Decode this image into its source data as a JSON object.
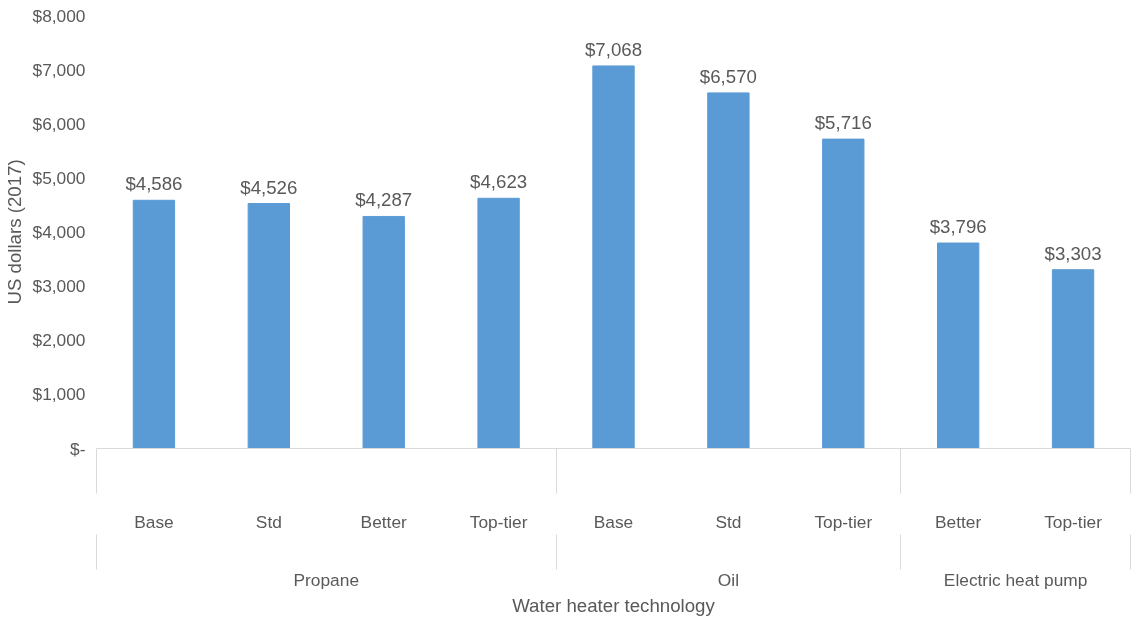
{
  "chart_data": {
    "type": "bar",
    "xlabel": "Water heater technology",
    "ylabel": "US dollars (2017)",
    "categories": [
      "Base",
      "Std",
      "Better",
      "Top-tier",
      "Base",
      "Std",
      "Top-tier",
      "Better",
      "Top-tier"
    ],
    "values": [
      4586,
      4526,
      4287,
      4623,
      7068,
      6570,
      5716,
      3796,
      3303
    ],
    "value_labels": [
      "$4,586",
      "$4,526",
      "$4,287",
      "$4,623",
      "$7,068",
      "$6,570",
      "$5,716",
      "$3,796",
      "$3,303"
    ],
    "color": "#5b9bd5",
    "annotations": [
      "Propane",
      "Oil",
      "Electric heat pump"
    ],
    "ylim": [
      0,
      8000
    ],
    "yticks": [
      {
        "value": 0,
        "label": "$-"
      },
      {
        "value": 1000,
        "label": "$1,000"
      },
      {
        "value": 2000,
        "label": "$2,000"
      },
      {
        "value": 3000,
        "label": "$3,000"
      },
      {
        "value": 4000,
        "label": "$4,000"
      },
      {
        "value": 5000,
        "label": "$5,000"
      },
      {
        "value": 6000,
        "label": "$6,000"
      },
      {
        "value": 7000,
        "label": "$7,000"
      },
      {
        "value": 8000,
        "label": "$8,000"
      }
    ],
    "grid": false
  }
}
